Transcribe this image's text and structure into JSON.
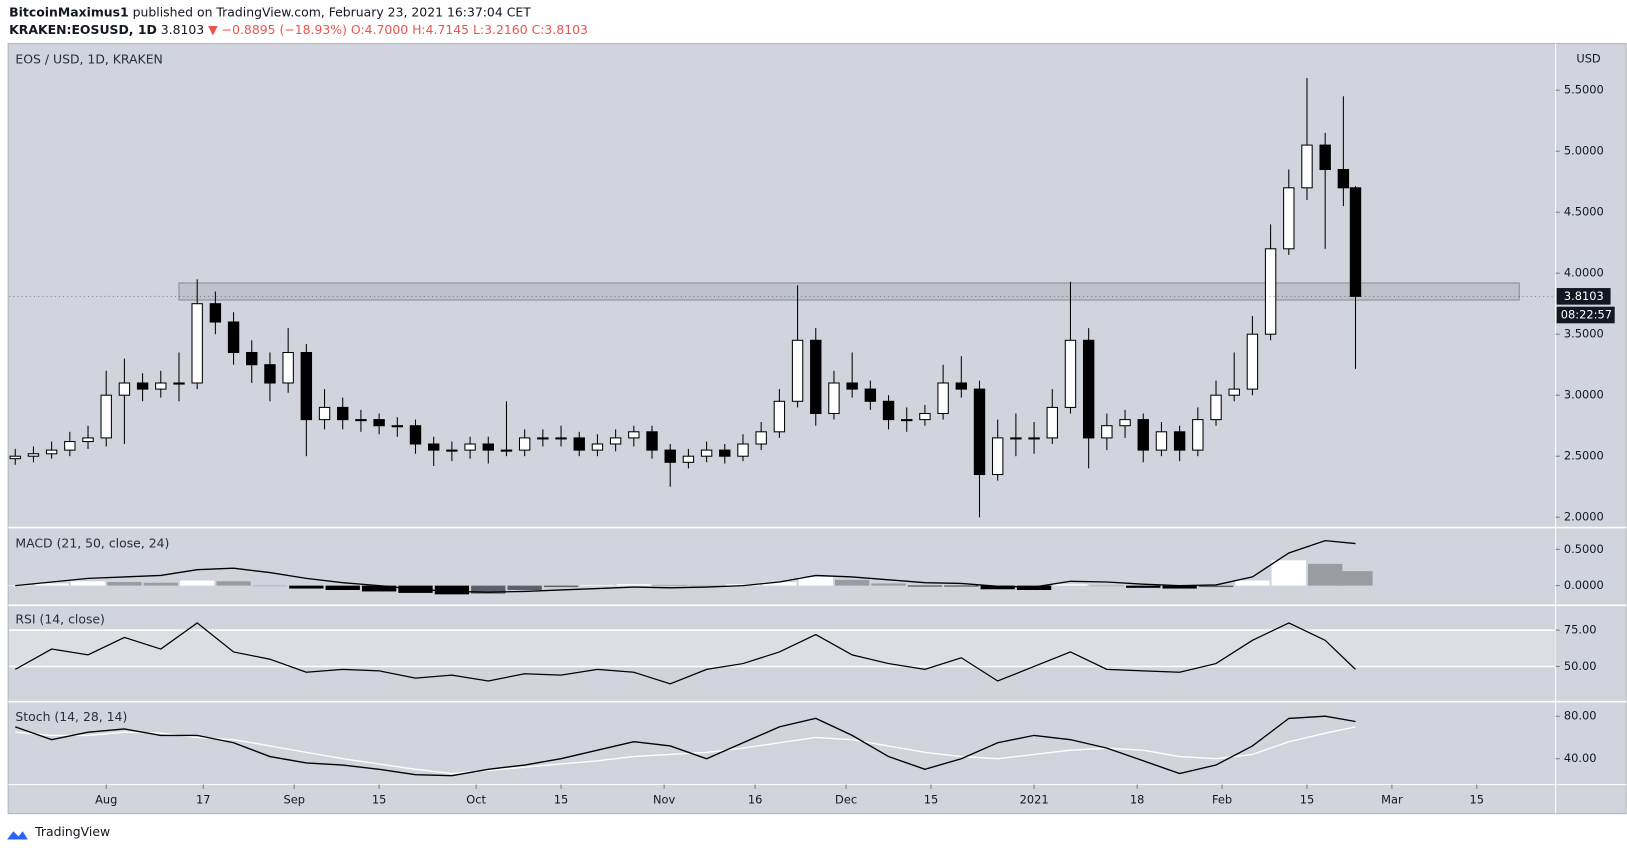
{
  "header": {
    "publisher": "BitcoinMaximus1",
    "published": "published on TradingView.com, February 23, 2021 16:37:04 CET",
    "symbol": "KRAKEN:EOSUSD, 1D",
    "last": "3.8103",
    "change": "▼ −0.8895 (−18.93%)",
    "open": "O:4.7000",
    "high": "H:4.7145",
    "low": "L:3.2160",
    "close": "C:3.8103"
  },
  "chart_data": [
    {
      "type": "candlestick",
      "title": "EOS / USD, 1D, KRAKEN",
      "y_label": "USD",
      "up_color": "#ffffff",
      "down_color": "#000000",
      "x": [
        "2020-07-17",
        "2020-07-20",
        "2020-07-23",
        "2020-07-26",
        "2020-07-29",
        "2020-08-01",
        "2020-08-04",
        "2020-08-07",
        "2020-08-10",
        "2020-08-13",
        "2020-08-16",
        "2020-08-19",
        "2020-08-22",
        "2020-08-25",
        "2020-08-28",
        "2020-08-31",
        "2020-09-03",
        "2020-09-06",
        "2020-09-09",
        "2020-09-12",
        "2020-09-15",
        "2020-09-18",
        "2020-09-21",
        "2020-09-24",
        "2020-09-27",
        "2020-09-30",
        "2020-10-03",
        "2020-10-06",
        "2020-10-09",
        "2020-10-12",
        "2020-10-15",
        "2020-10-18",
        "2020-10-21",
        "2020-10-24",
        "2020-10-27",
        "2020-10-30",
        "2020-11-02",
        "2020-11-05",
        "2020-11-08",
        "2020-11-11",
        "2020-11-14",
        "2020-11-17",
        "2020-11-20",
        "2020-11-23",
        "2020-11-26",
        "2020-11-29",
        "2020-12-02",
        "2020-12-05",
        "2020-12-08",
        "2020-12-11",
        "2020-12-14",
        "2020-12-17",
        "2020-12-20",
        "2020-12-23",
        "2020-12-26",
        "2020-12-29",
        "2021-01-01",
        "2021-01-04",
        "2021-01-07",
        "2021-01-10",
        "2021-01-13",
        "2021-01-16",
        "2021-01-19",
        "2021-01-22",
        "2021-01-25",
        "2021-01-28",
        "2021-01-31",
        "2021-02-03",
        "2021-02-06",
        "2021-02-09",
        "2021-02-12",
        "2021-02-15",
        "2021-02-18",
        "2021-02-21",
        "2021-02-23"
      ],
      "ohlc": [
        [
          2.48,
          2.56,
          2.43,
          2.5
        ],
        [
          2.5,
          2.58,
          2.45,
          2.52
        ],
        [
          2.52,
          2.62,
          2.48,
          2.55
        ],
        [
          2.55,
          2.7,
          2.5,
          2.62
        ],
        [
          2.62,
          2.75,
          2.56,
          2.65
        ],
        [
          2.65,
          3.2,
          2.58,
          3.0
        ],
        [
          3.0,
          3.3,
          2.6,
          3.1
        ],
        [
          3.1,
          3.18,
          2.95,
          3.05
        ],
        [
          3.05,
          3.2,
          2.98,
          3.1
        ],
        [
          3.1,
          3.35,
          2.95,
          3.1
        ],
        [
          3.1,
          3.95,
          3.05,
          3.75
        ],
        [
          3.75,
          3.85,
          3.5,
          3.6
        ],
        [
          3.6,
          3.68,
          3.25,
          3.35
        ],
        [
          3.35,
          3.45,
          3.1,
          3.25
        ],
        [
          3.25,
          3.35,
          2.95,
          3.1
        ],
        [
          3.1,
          3.55,
          3.02,
          3.35
        ],
        [
          3.35,
          3.42,
          2.5,
          2.8
        ],
        [
          2.8,
          3.05,
          2.72,
          2.9
        ],
        [
          2.9,
          2.98,
          2.72,
          2.8
        ],
        [
          2.8,
          2.88,
          2.7,
          2.8
        ],
        [
          2.8,
          2.85,
          2.68,
          2.75
        ],
        [
          2.75,
          2.82,
          2.66,
          2.75
        ],
        [
          2.75,
          2.8,
          2.52,
          2.6
        ],
        [
          2.6,
          2.66,
          2.42,
          2.55
        ],
        [
          2.55,
          2.62,
          2.46,
          2.55
        ],
        [
          2.55,
          2.66,
          2.48,
          2.6
        ],
        [
          2.6,
          2.66,
          2.44,
          2.55
        ],
        [
          2.55,
          2.95,
          2.5,
          2.55
        ],
        [
          2.55,
          2.72,
          2.5,
          2.65
        ],
        [
          2.65,
          2.72,
          2.58,
          2.65
        ],
        [
          2.65,
          2.75,
          2.58,
          2.65
        ],
        [
          2.65,
          2.7,
          2.5,
          2.55
        ],
        [
          2.55,
          2.68,
          2.5,
          2.6
        ],
        [
          2.6,
          2.72,
          2.54,
          2.65
        ],
        [
          2.65,
          2.75,
          2.58,
          2.7
        ],
        [
          2.7,
          2.75,
          2.48,
          2.55
        ],
        [
          2.55,
          2.6,
          2.25,
          2.45
        ],
        [
          2.45,
          2.56,
          2.4,
          2.5
        ],
        [
          2.5,
          2.62,
          2.45,
          2.55
        ],
        [
          2.55,
          2.6,
          2.44,
          2.5
        ],
        [
          2.5,
          2.68,
          2.46,
          2.6
        ],
        [
          2.6,
          2.78,
          2.55,
          2.7
        ],
        [
          2.7,
          3.05,
          2.65,
          2.95
        ],
        [
          2.95,
          3.9,
          2.9,
          3.45
        ],
        [
          3.45,
          3.55,
          2.75,
          2.85
        ],
        [
          2.85,
          3.2,
          2.8,
          3.1
        ],
        [
          3.1,
          3.35,
          2.98,
          3.05
        ],
        [
          3.05,
          3.12,
          2.88,
          2.95
        ],
        [
          2.95,
          3.0,
          2.72,
          2.8
        ],
        [
          2.8,
          2.9,
          2.7,
          2.8
        ],
        [
          2.8,
          2.92,
          2.75,
          2.85
        ],
        [
          2.85,
          3.25,
          2.8,
          3.1
        ],
        [
          3.1,
          3.32,
          2.98,
          3.05
        ],
        [
          3.05,
          3.12,
          2.0,
          2.35
        ],
        [
          2.35,
          2.8,
          2.3,
          2.65
        ],
        [
          2.65,
          2.85,
          2.5,
          2.65
        ],
        [
          2.65,
          2.78,
          2.52,
          2.65
        ],
        [
          2.65,
          3.05,
          2.6,
          2.9
        ],
        [
          2.9,
          3.93,
          2.85,
          3.45
        ],
        [
          3.45,
          3.55,
          2.4,
          2.65
        ],
        [
          2.65,
          2.85,
          2.55,
          2.75
        ],
        [
          2.75,
          2.88,
          2.65,
          2.8
        ],
        [
          2.8,
          2.85,
          2.45,
          2.55
        ],
        [
          2.55,
          2.78,
          2.5,
          2.7
        ],
        [
          2.7,
          2.75,
          2.46,
          2.55
        ],
        [
          2.55,
          2.9,
          2.5,
          2.8
        ],
        [
          2.8,
          3.12,
          2.75,
          3.0
        ],
        [
          3.0,
          3.35,
          2.95,
          3.05
        ],
        [
          3.05,
          3.65,
          3.0,
          3.5
        ],
        [
          3.5,
          4.4,
          3.45,
          4.2
        ],
        [
          4.2,
          4.85,
          4.15,
          4.7
        ],
        [
          4.7,
          5.6,
          4.6,
          5.05
        ],
        [
          5.05,
          5.15,
          4.2,
          4.85
        ],
        [
          4.85,
          5.45,
          4.55,
          4.7
        ],
        [
          4.7,
          4.7145,
          3.216,
          3.8103
        ]
      ],
      "xlim": [
        "2020-07-16",
        "2021-03-28"
      ],
      "xticks": [
        {
          "value": "2020-08-01",
          "label": "Aug"
        },
        {
          "value": "2020-08-17",
          "label": "17"
        },
        {
          "value": "2020-09-01",
          "label": "Sep"
        },
        {
          "value": "2020-09-15",
          "label": "15"
        },
        {
          "value": "2020-10-01",
          "label": "Oct"
        },
        {
          "value": "2020-10-15",
          "label": "15"
        },
        {
          "value": "2020-11-01",
          "label": "Nov"
        },
        {
          "value": "2020-11-16",
          "label": "16"
        },
        {
          "value": "2020-12-01",
          "label": "Dec"
        },
        {
          "value": "2020-12-15",
          "label": "15"
        },
        {
          "value": "2021-01-01",
          "label": "2021"
        },
        {
          "value": "2021-01-18",
          "label": "18"
        },
        {
          "value": "2021-02-01",
          "label": "Feb"
        },
        {
          "value": "2021-02-15",
          "label": "15"
        },
        {
          "value": "2021-03-01",
          "label": "Mar"
        },
        {
          "value": "2021-03-15",
          "label": "15"
        }
      ],
      "ylim": [
        1.915,
        5.874
      ],
      "yticks": [
        {
          "value": 2,
          "label": "2.0000"
        },
        {
          "value": 2.5,
          "label": "2.5000"
        },
        {
          "value": 3,
          "label": "3.0000"
        },
        {
          "value": 3.5,
          "label": "3.5000"
        },
        {
          "value": 4,
          "label": "4.0000"
        },
        {
          "value": 4.5,
          "label": "4.5000"
        },
        {
          "value": 5,
          "label": "5.0000"
        },
        {
          "value": 5.5,
          "label": "5.5000"
        }
      ],
      "zone": {
        "x": [
          "2020-08-13",
          "2021-03-22"
        ],
        "y": [
          3.78,
          3.92
        ]
      },
      "last_price": 3.8103,
      "countdown": "08:22:57"
    },
    {
      "type": "macd",
      "title": "MACD (21, 50, close, 24)",
      "x": [
        "2020-07-17",
        "2020-07-23",
        "2020-07-29",
        "2020-08-04",
        "2020-08-10",
        "2020-08-16",
        "2020-08-22",
        "2020-08-28",
        "2020-09-03",
        "2020-09-09",
        "2020-09-15",
        "2020-09-21",
        "2020-09-27",
        "2020-10-03",
        "2020-10-09",
        "2020-10-15",
        "2020-10-21",
        "2020-10-27",
        "2020-11-02",
        "2020-11-08",
        "2020-11-14",
        "2020-11-20",
        "2020-11-26",
        "2020-12-02",
        "2020-12-08",
        "2020-12-14",
        "2020-12-20",
        "2020-12-26",
        "2021-01-01",
        "2021-01-07",
        "2021-01-13",
        "2021-01-19",
        "2021-01-25",
        "2021-01-31",
        "2021-02-06",
        "2021-02-12",
        "2021-02-18",
        "2021-02-23"
      ],
      "macd": [
        0.0,
        0.05,
        0.1,
        0.12,
        0.14,
        0.22,
        0.24,
        0.18,
        0.1,
        0.04,
        0.0,
        -0.05,
        -0.08,
        -0.09,
        -0.08,
        -0.06,
        -0.04,
        -0.02,
        -0.03,
        -0.02,
        0.0,
        0.05,
        0.14,
        0.12,
        0.08,
        0.04,
        0.03,
        -0.01,
        -0.02,
        0.06,
        0.05,
        0.02,
        0.0,
        0.01,
        0.12,
        0.45,
        0.62,
        0.58
      ],
      "histogram": [
        0.0,
        0.03,
        0.06,
        0.05,
        0.04,
        0.07,
        0.06,
        0.0,
        -0.04,
        -0.06,
        -0.08,
        -0.1,
        -0.12,
        -0.11,
        -0.06,
        -0.02,
        0.01,
        0.02,
        0.01,
        0.0,
        0.02,
        0.05,
        0.12,
        0.08,
        0.03,
        -0.01,
        -0.01,
        -0.05,
        -0.06,
        0.02,
        0.0,
        -0.03,
        -0.04,
        -0.02,
        0.07,
        0.35,
        0.3,
        0.2
      ],
      "ylim": [
        -0.214,
        0.786
      ],
      "yticks": [
        {
          "value": 0,
          "label": "0.0000"
        },
        {
          "value": 0.5,
          "label": "0.5000"
        }
      ]
    },
    {
      "type": "rsi",
      "title": "RSI (14, close)",
      "x": [
        "2020-07-17",
        "2020-07-23",
        "2020-07-29",
        "2020-08-04",
        "2020-08-10",
        "2020-08-16",
        "2020-08-22",
        "2020-08-28",
        "2020-09-03",
        "2020-09-09",
        "2020-09-15",
        "2020-09-21",
        "2020-09-27",
        "2020-10-03",
        "2020-10-09",
        "2020-10-15",
        "2020-10-21",
        "2020-10-27",
        "2020-11-02",
        "2020-11-08",
        "2020-11-14",
        "2020-11-20",
        "2020-11-26",
        "2020-12-02",
        "2020-12-08",
        "2020-12-14",
        "2020-12-20",
        "2020-12-26",
        "2021-01-01",
        "2021-01-07",
        "2021-01-13",
        "2021-01-19",
        "2021-01-25",
        "2021-01-31",
        "2021-02-06",
        "2021-02-12",
        "2021-02-18",
        "2021-02-23"
      ],
      "values": [
        48,
        62,
        58,
        70,
        62,
        80,
        60,
        55,
        46,
        48,
        47,
        42,
        44,
        40,
        45,
        44,
        48,
        46,
        38,
        48,
        52,
        60,
        72,
        58,
        52,
        48,
        56,
        40,
        50,
        60,
        48,
        47,
        46,
        52,
        68,
        80,
        68,
        48
      ],
      "ylim": [
        29.3,
        91.4
      ],
      "yticks": [
        {
          "value": 50,
          "label": "50.00"
        },
        {
          "value": 75,
          "label": "75.00"
        }
      ]
    },
    {
      "type": "stoch",
      "title": "Stoch (14, 28, 14)",
      "x": [
        "2020-07-17",
        "2020-07-23",
        "2020-07-29",
        "2020-08-04",
        "2020-08-10",
        "2020-08-16",
        "2020-08-22",
        "2020-08-28",
        "2020-09-03",
        "2020-09-09",
        "2020-09-15",
        "2020-09-21",
        "2020-09-27",
        "2020-10-03",
        "2020-10-09",
        "2020-10-15",
        "2020-10-21",
        "2020-10-27",
        "2020-11-02",
        "2020-11-08",
        "2020-11-14",
        "2020-11-20",
        "2020-11-26",
        "2020-12-02",
        "2020-12-08",
        "2020-12-14",
        "2020-12-20",
        "2020-12-26",
        "2021-01-01",
        "2021-01-07",
        "2021-01-13",
        "2021-01-19",
        "2021-01-25",
        "2021-01-31",
        "2021-02-06",
        "2021-02-12",
        "2021-02-18",
        "2021-02-23"
      ],
      "series": [
        {
          "color": "#000000",
          "values": [
            70,
            58,
            65,
            68,
            62,
            62,
            55,
            42,
            36,
            34,
            30,
            25,
            24,
            30,
            34,
            40,
            48,
            56,
            52,
            40,
            55,
            70,
            78,
            62,
            42,
            30,
            40,
            55,
            62,
            58,
            50,
            38,
            26,
            34,
            52,
            78,
            80,
            75
          ]
        },
        {
          "color": "#ffffff",
          "values": [
            65,
            62,
            62,
            65,
            64,
            60,
            58,
            52,
            46,
            40,
            35,
            30,
            26,
            29,
            32,
            35,
            38,
            42,
            44,
            46,
            50,
            55,
            60,
            58,
            52,
            46,
            42,
            40,
            44,
            48,
            50,
            48,
            42,
            40,
            44,
            56,
            64,
            70
          ]
        }
      ],
      "ylim": [
        15.6,
        92.7
      ],
      "yticks": [
        {
          "value": 40,
          "label": "40.00"
        },
        {
          "value": 80,
          "label": "80.00"
        }
      ]
    }
  ],
  "footer": {
    "brand": "TradingView"
  }
}
